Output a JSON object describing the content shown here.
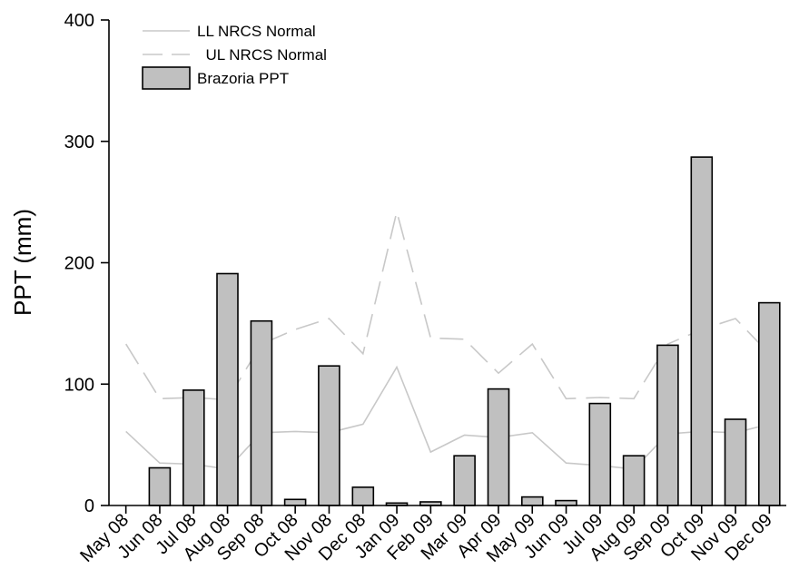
{
  "chart_data": {
    "type": "bar",
    "categories": [
      "May 08",
      "Jun 08",
      "Jul 08",
      "Aug 08",
      "Sep 08",
      "Oct 08",
      "Nov 08",
      "Dec 08",
      "Jan 09",
      "Feb 09",
      "Mar 09",
      "Apr 09",
      "May 09",
      "Jun 09",
      "Jul 09",
      "Aug 09",
      "Sep 09",
      "Oct 09",
      "Nov 09",
      "Dec 09"
    ],
    "ylabel": "PPT (mm)",
    "xlabel": "",
    "title": "",
    "ylim": [
      0,
      400
    ],
    "yticks": [
      0,
      100,
      200,
      300,
      400
    ],
    "legend_position": "top-left",
    "series": [
      {
        "name": "Brazoria PPT",
        "kind": "bar",
        "color": "#c0c0c0",
        "values": [
          0,
          31,
          95,
          191,
          152,
          5,
          115,
          15,
          2,
          3,
          41,
          96,
          7,
          4,
          84,
          41,
          132,
          287,
          71,
          167
        ]
      },
      {
        "name": "LL NRCS Normal",
        "kind": "line",
        "style": "solid",
        "color": "#c8c8c8",
        "values": [
          61,
          35,
          34,
          30,
          60,
          61,
          60,
          67,
          114,
          44,
          58,
          56,
          60,
          35,
          33,
          30,
          59,
          61,
          60,
          67
        ]
      },
      {
        "name": "UL NRCS Normal",
        "kind": "line",
        "style": "dashed",
        "color": "#c8c8c8",
        "values": [
          133,
          88,
          89,
          87,
          133,
          145,
          154,
          125,
          242,
          138,
          137,
          109,
          133,
          88,
          89,
          88,
          133,
          145,
          154,
          125
        ]
      }
    ],
    "legend": [
      {
        "label": "LL NRCS Normal",
        "series": "LL NRCS Normal"
      },
      {
        "label": "  UL NRCS Normal",
        "series": "UL NRCS Normal"
      },
      {
        "label": "Brazoria PPT",
        "series": "Brazoria PPT"
      }
    ]
  }
}
